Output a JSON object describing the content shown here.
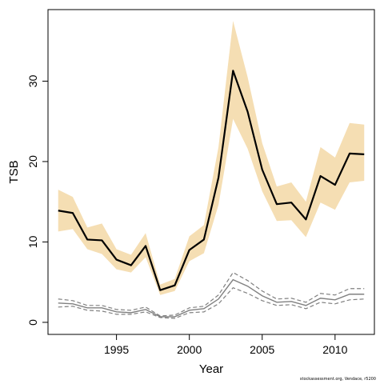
{
  "chart_data": {
    "type": "line",
    "title": "",
    "xlabel": "Year",
    "ylabel": "TSB",
    "xlim": [
      1990.3,
      2012.7
    ],
    "ylim": [
      -1.5,
      38.9
    ],
    "x_ticks": [
      1995,
      2000,
      2005,
      2010
    ],
    "y_ticks": [
      0,
      10,
      20,
      30
    ],
    "grid": false,
    "x": [
      1991,
      1992,
      1993,
      1994,
      1995,
      1996,
      1997,
      1998,
      1999,
      2000,
      2001,
      2002,
      2003,
      2004,
      2005,
      2006,
      2007,
      2008,
      2009,
      2010,
      2011,
      2012
    ],
    "series": [
      {
        "role": "estimate",
        "color": "#000000",
        "values": [
          13.9,
          13.6,
          10.3,
          10.2,
          7.8,
          7.1,
          9.5,
          4.0,
          4.6,
          9.0,
          10.3,
          18.0,
          31.3,
          26.2,
          19.0,
          14.7,
          14.9,
          12.8,
          18.2,
          17.1,
          21.0,
          20.9
        ]
      },
      {
        "role": "confidence-band",
        "color": "#f5deb3",
        "lower": [
          11.3,
          11.6,
          9.1,
          8.5,
          6.6,
          6.2,
          8.1,
          3.4,
          3.9,
          7.6,
          8.6,
          14.6,
          25.3,
          21.6,
          16.3,
          12.6,
          12.7,
          10.6,
          14.9,
          14.0,
          17.4,
          17.6
        ],
        "upper": [
          16.5,
          15.6,
          11.8,
          12.3,
          9.1,
          8.4,
          11.1,
          4.7,
          5.4,
          10.7,
          12.1,
          21.8,
          37.5,
          30.5,
          22.3,
          16.9,
          17.4,
          15.0,
          21.8,
          20.5,
          24.8,
          24.6
        ]
      },
      {
        "role": "secondary-estimate",
        "color": "#808080",
        "values": [
          2.4,
          2.3,
          1.8,
          1.8,
          1.3,
          1.2,
          1.6,
          0.7,
          0.7,
          1.5,
          1.7,
          2.9,
          5.3,
          4.5,
          3.3,
          2.5,
          2.6,
          2.1,
          3.0,
          2.8,
          3.5,
          3.5
        ]
      },
      {
        "role": "secondary-lower",
        "color": "#808080",
        "values": [
          1.9,
          2.0,
          1.5,
          1.4,
          1.0,
          1.0,
          1.3,
          0.6,
          0.5,
          1.2,
          1.3,
          2.3,
          4.3,
          3.6,
          2.7,
          2.1,
          2.2,
          1.7,
          2.5,
          2.3,
          2.8,
          2.9
        ]
      },
      {
        "role": "secondary-upper",
        "color": "#808080",
        "values": [
          2.9,
          2.7,
          2.1,
          2.1,
          1.6,
          1.5,
          1.9,
          0.8,
          0.9,
          1.8,
          2.0,
          3.4,
          6.2,
          5.2,
          3.9,
          2.9,
          3.0,
          2.5,
          3.6,
          3.4,
          4.2,
          4.2
        ]
      }
    ]
  },
  "footer": {
    "credit": "stockassessment.org, Vendace, r5200"
  }
}
